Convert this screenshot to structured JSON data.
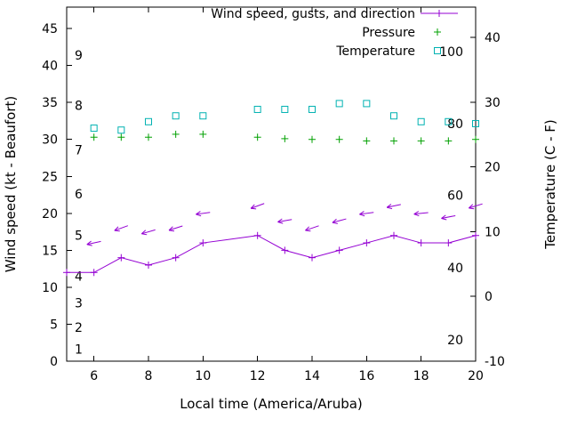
{
  "chart_data": {
    "type": "line",
    "title": "",
    "xlabel": "Local time (America/Aruba)",
    "ylabel": "Wind speed (kt - Beaufort)",
    "ylabel_right": "Temperature (C - F)",
    "colors": {
      "wind": "#9400d3",
      "pressure": "#00a000",
      "temperature": "#00b2b2",
      "frame": "#000000"
    },
    "axes": {
      "x": {
        "label": "Local time (America/Aruba)",
        "min": 5,
        "max": 20,
        "ticks": [
          "6",
          "8",
          "10",
          "12",
          "14",
          "16",
          "18",
          "20"
        ],
        "tick_values": [
          6,
          8,
          10,
          12,
          14,
          16,
          18,
          20
        ]
      },
      "left": {
        "label": "Wind speed (kt - Beaufort)",
        "min": 0,
        "max": 47.9,
        "ticks": [
          "0",
          "5",
          "10",
          "15",
          "20",
          "25",
          "30",
          "35",
          "40",
          "45"
        ],
        "tick_values": [
          0,
          5,
          10,
          15,
          20,
          25,
          30,
          35,
          40,
          45
        ]
      },
      "right": {
        "label": "Temperature (C - F)",
        "min": -10,
        "max": 44.7,
        "ticks": [
          "-10",
          "0",
          "10",
          "20",
          "30",
          "40"
        ],
        "tick_values": [
          -10,
          0,
          10,
          20,
          30,
          40
        ]
      },
      "beaufort_scale": {
        "labels": [
          "1",
          "2",
          "3",
          "4",
          "5",
          "6",
          "7",
          "8",
          "9"
        ],
        "positions_kt": [
          1.6,
          4.6,
          7.9,
          11.5,
          17.0,
          22.6,
          28.6,
          34.6,
          41.4
        ]
      },
      "fahrenheit_scale": {
        "labels": [
          "20",
          "40",
          "60",
          "80",
          "100"
        ],
        "positions_c": [
          -6.7,
          4.4,
          15.6,
          26.7,
          37.8
        ]
      }
    },
    "legend": {
      "position": "top-right-inside",
      "entries": [
        {
          "label": "Wind speed, gusts, and direction",
          "style": "line-plus",
          "color": "#9400d3"
        },
        {
          "label": "Pressure",
          "style": "plus",
          "color": "#00a000"
        },
        {
          "label": "Temperature",
          "style": "square",
          "color": "#00b2b2"
        }
      ]
    },
    "series": [
      {
        "name": "Wind speed, gusts, and direction",
        "type": "line-plus",
        "axis": "left",
        "color": "#9400d3",
        "x": [
          5,
          6,
          7,
          8,
          9,
          10,
          12,
          13,
          14,
          15,
          16,
          17,
          18,
          19,
          20
        ],
        "y": [
          12,
          12,
          14,
          13,
          14,
          16,
          17,
          15,
          14,
          15,
          16,
          17,
          16,
          16,
          17
        ]
      },
      {
        "name": "Wind gusts and direction arrows",
        "type": "arrow",
        "axis": "left",
        "color": "#9400d3",
        "x": [
          6,
          7,
          8,
          9,
          10,
          12,
          13,
          14,
          15,
          16,
          17,
          18,
          19,
          20
        ],
        "y": [
          16,
          18,
          17.5,
          18,
          20,
          21,
          19,
          18,
          19,
          20,
          21,
          20,
          19.5,
          21
        ],
        "angle_deg": [
          192,
          200,
          196,
          198,
          188,
          200,
          190,
          199,
          195,
          188,
          192,
          186,
          191,
          197
        ]
      },
      {
        "name": "Pressure",
        "type": "plus",
        "axis": "left",
        "color": "#00a000",
        "x": [
          6,
          7,
          8,
          9,
          10,
          12,
          13,
          14,
          15,
          16,
          17,
          18,
          19,
          20
        ],
        "y": [
          30.3,
          30.3,
          30.3,
          30.7,
          30.7,
          30.3,
          30.1,
          30.0,
          30.0,
          29.8,
          29.8,
          29.8,
          29.8,
          30.0
        ]
      },
      {
        "name": "Temperature",
        "type": "square",
        "axis": "right",
        "color": "#00b2b2",
        "x": [
          6,
          7,
          8,
          9,
          10,
          12,
          13,
          14,
          15,
          16,
          17,
          18,
          19,
          20
        ],
        "y": [
          26.0,
          25.7,
          27.0,
          27.9,
          27.9,
          28.9,
          28.9,
          28.9,
          29.8,
          29.8,
          27.9,
          27.0,
          27.0,
          26.7
        ]
      }
    ]
  }
}
